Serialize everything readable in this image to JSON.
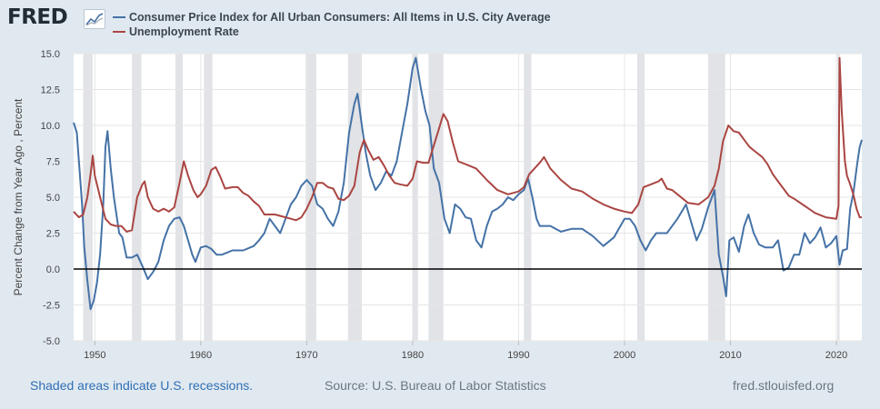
{
  "brand": {
    "logo_text": "FRED",
    "logo_icon": "trend-chart-icon"
  },
  "colors": {
    "background": "#e1e9f0",
    "plot_bg": "#ffffff",
    "recession": "#e1e3e6",
    "series_cpi": "#4572a7",
    "series_unrate": "#aa4643",
    "zero_line": "#000000"
  },
  "footer": {
    "recession_note": "Shaded areas indicate U.S. recessions.",
    "source": "Source: U.S. Bureau of Labor Statistics",
    "site": "fred.stlouisfed.org"
  },
  "chart_data": {
    "type": "line",
    "title": "",
    "ylabel": "Percent Change from Year Ago , Percent",
    "xlabel": "",
    "xlim": [
      1948.0,
      2022.4
    ],
    "ylim": [
      -5.0,
      15.0
    ],
    "x_ticks": [
      1950,
      1960,
      1970,
      1980,
      1990,
      2000,
      2010,
      2020
    ],
    "y_ticks": [
      "-5.0",
      "-2.5",
      "0.0",
      "2.5",
      "5.0",
      "7.5",
      "10.0",
      "12.5",
      "15.0"
    ],
    "grid": "vertical and horizontal",
    "legend_position": "top-left",
    "recessions": [
      [
        1948.9,
        1949.8
      ],
      [
        1953.5,
        1954.4
      ],
      [
        1957.6,
        1958.3
      ],
      [
        1960.3,
        1961.1
      ],
      [
        1969.9,
        1970.9
      ],
      [
        1973.9,
        1975.2
      ],
      [
        1980.0,
        1980.5
      ],
      [
        1981.5,
        1982.9
      ],
      [
        1990.5,
        1991.2
      ],
      [
        2001.2,
        2001.9
      ],
      [
        2007.9,
        2009.5
      ],
      [
        2020.1,
        2020.3
      ]
    ],
    "series": [
      {
        "name": "Consumer Price Index for All Urban Consumers: All Items in U.S. City Average",
        "color": "#4572a7",
        "points": [
          [
            1948.0,
            10.2
          ],
          [
            1948.3,
            9.5
          ],
          [
            1948.5,
            7.5
          ],
          [
            1948.8,
            4.5
          ],
          [
            1949.0,
            1.5
          ],
          [
            1949.3,
            -0.8
          ],
          [
            1949.6,
            -2.8
          ],
          [
            1949.9,
            -2.2
          ],
          [
            1950.2,
            -1.0
          ],
          [
            1950.5,
            1.0
          ],
          [
            1950.8,
            4.5
          ],
          [
            1951.0,
            8.5
          ],
          [
            1951.2,
            9.6
          ],
          [
            1951.5,
            7.0
          ],
          [
            1951.8,
            5.0
          ],
          [
            1952.0,
            4.0
          ],
          [
            1952.3,
            2.5
          ],
          [
            1952.6,
            2.2
          ],
          [
            1953.0,
            0.8
          ],
          [
            1953.5,
            0.8
          ],
          [
            1954.0,
            1.0
          ],
          [
            1954.5,
            0.2
          ],
          [
            1955.0,
            -0.7
          ],
          [
            1955.5,
            -0.2
          ],
          [
            1956.0,
            0.5
          ],
          [
            1956.5,
            2.0
          ],
          [
            1957.0,
            3.0
          ],
          [
            1957.5,
            3.5
          ],
          [
            1958.0,
            3.6
          ],
          [
            1958.4,
            3.0
          ],
          [
            1958.8,
            2.0
          ],
          [
            1959.2,
            1.0
          ],
          [
            1959.5,
            0.5
          ],
          [
            1960.0,
            1.5
          ],
          [
            1960.5,
            1.6
          ],
          [
            1961.0,
            1.4
          ],
          [
            1961.5,
            1.0
          ],
          [
            1962.0,
            1.0
          ],
          [
            1963.0,
            1.3
          ],
          [
            1964.0,
            1.3
          ],
          [
            1965.0,
            1.6
          ],
          [
            1965.5,
            2.0
          ],
          [
            1966.0,
            2.5
          ],
          [
            1966.5,
            3.5
          ],
          [
            1967.0,
            3.0
          ],
          [
            1967.5,
            2.5
          ],
          [
            1968.0,
            3.5
          ],
          [
            1968.5,
            4.5
          ],
          [
            1969.0,
            5.0
          ],
          [
            1969.5,
            5.8
          ],
          [
            1970.0,
            6.2
          ],
          [
            1970.5,
            5.8
          ],
          [
            1971.0,
            4.5
          ],
          [
            1971.5,
            4.2
          ],
          [
            1972.0,
            3.5
          ],
          [
            1972.5,
            3.0
          ],
          [
            1973.0,
            4.0
          ],
          [
            1973.5,
            6.0
          ],
          [
            1974.0,
            9.5
          ],
          [
            1974.5,
            11.5
          ],
          [
            1974.8,
            12.2
          ],
          [
            1975.2,
            10.0
          ],
          [
            1975.6,
            8.0
          ],
          [
            1976.0,
            6.5
          ],
          [
            1976.5,
            5.5
          ],
          [
            1977.0,
            6.0
          ],
          [
            1977.5,
            6.8
          ],
          [
            1978.0,
            6.5
          ],
          [
            1978.5,
            7.5
          ],
          [
            1979.0,
            9.5
          ],
          [
            1979.5,
            11.5
          ],
          [
            1980.0,
            14.0
          ],
          [
            1980.3,
            14.7
          ],
          [
            1980.8,
            12.5
          ],
          [
            1981.2,
            11.0
          ],
          [
            1981.6,
            10.0
          ],
          [
            1982.0,
            7.0
          ],
          [
            1982.5,
            6.0
          ],
          [
            1983.0,
            3.5
          ],
          [
            1983.5,
            2.5
          ],
          [
            1984.0,
            4.5
          ],
          [
            1984.5,
            4.2
          ],
          [
            1985.0,
            3.6
          ],
          [
            1985.5,
            3.5
          ],
          [
            1986.0,
            2.0
          ],
          [
            1986.5,
            1.5
          ],
          [
            1987.0,
            3.0
          ],
          [
            1987.5,
            4.0
          ],
          [
            1988.0,
            4.2
          ],
          [
            1988.5,
            4.5
          ],
          [
            1989.0,
            5.0
          ],
          [
            1989.5,
            4.8
          ],
          [
            1990.0,
            5.2
          ],
          [
            1990.5,
            5.5
          ],
          [
            1990.9,
            6.3
          ],
          [
            1991.3,
            5.0
          ],
          [
            1991.7,
            3.5
          ],
          [
            1992.0,
            3.0
          ],
          [
            1993.0,
            3.0
          ],
          [
            1994.0,
            2.6
          ],
          [
            1995.0,
            2.8
          ],
          [
            1996.0,
            2.8
          ],
          [
            1997.0,
            2.3
          ],
          [
            1998.0,
            1.6
          ],
          [
            1999.0,
            2.2
          ],
          [
            2000.0,
            3.5
          ],
          [
            2000.5,
            3.5
          ],
          [
            2001.0,
            3.0
          ],
          [
            2001.5,
            2.0
          ],
          [
            2002.0,
            1.3
          ],
          [
            2002.5,
            2.0
          ],
          [
            2003.0,
            2.5
          ],
          [
            2004.0,
            2.5
          ],
          [
            2005.0,
            3.5
          ],
          [
            2005.8,
            4.5
          ],
          [
            2006.2,
            3.5
          ],
          [
            2006.8,
            2.0
          ],
          [
            2007.3,
            2.8
          ],
          [
            2007.9,
            4.3
          ],
          [
            2008.5,
            5.5
          ],
          [
            2008.9,
            1.0
          ],
          [
            2009.3,
            -0.5
          ],
          [
            2009.6,
            -1.9
          ],
          [
            2009.9,
            2.0
          ],
          [
            2010.3,
            2.2
          ],
          [
            2010.8,
            1.2
          ],
          [
            2011.3,
            3.0
          ],
          [
            2011.7,
            3.8
          ],
          [
            2012.2,
            2.5
          ],
          [
            2012.7,
            1.7
          ],
          [
            2013.3,
            1.5
          ],
          [
            2014.0,
            1.5
          ],
          [
            2014.5,
            2.0
          ],
          [
            2015.0,
            -0.1
          ],
          [
            2015.5,
            0.1
          ],
          [
            2016.0,
            1.0
          ],
          [
            2016.5,
            1.0
          ],
          [
            2017.0,
            2.5
          ],
          [
            2017.5,
            1.8
          ],
          [
            2018.0,
            2.2
          ],
          [
            2018.5,
            2.9
          ],
          [
            2019.0,
            1.5
          ],
          [
            2019.5,
            1.8
          ],
          [
            2020.0,
            2.3
          ],
          [
            2020.3,
            0.3
          ],
          [
            2020.6,
            1.3
          ],
          [
            2021.0,
            1.4
          ],
          [
            2021.3,
            4.2
          ],
          [
            2021.6,
            5.3
          ],
          [
            2022.0,
            7.5
          ],
          [
            2022.2,
            8.5
          ],
          [
            2022.4,
            9.0
          ]
        ]
      },
      {
        "name": "Unemployment Rate",
        "color": "#aa4643",
        "points": [
          [
            1948.0,
            4.0
          ],
          [
            1948.5,
            3.6
          ],
          [
            1948.9,
            3.8
          ],
          [
            1949.3,
            5.0
          ],
          [
            1949.6,
            6.6
          ],
          [
            1949.8,
            7.9
          ],
          [
            1950.0,
            6.5
          ],
          [
            1950.5,
            5.0
          ],
          [
            1951.0,
            3.5
          ],
          [
            1951.5,
            3.1
          ],
          [
            1952.0,
            3.0
          ],
          [
            1952.5,
            3.0
          ],
          [
            1953.0,
            2.6
          ],
          [
            1953.5,
            2.7
          ],
          [
            1954.0,
            5.0
          ],
          [
            1954.5,
            5.9
          ],
          [
            1954.7,
            6.1
          ],
          [
            1955.0,
            5.0
          ],
          [
            1955.5,
            4.2
          ],
          [
            1956.0,
            4.0
          ],
          [
            1956.5,
            4.2
          ],
          [
            1957.0,
            4.0
          ],
          [
            1957.5,
            4.3
          ],
          [
            1958.0,
            6.0
          ],
          [
            1958.4,
            7.5
          ],
          [
            1958.8,
            6.5
          ],
          [
            1959.3,
            5.5
          ],
          [
            1959.7,
            5.0
          ],
          [
            1960.0,
            5.2
          ],
          [
            1960.5,
            5.8
          ],
          [
            1961.0,
            6.9
          ],
          [
            1961.4,
            7.1
          ],
          [
            1961.8,
            6.5
          ],
          [
            1962.3,
            5.6
          ],
          [
            1963.0,
            5.7
          ],
          [
            1963.5,
            5.7
          ],
          [
            1964.0,
            5.3
          ],
          [
            1964.5,
            5.1
          ],
          [
            1965.0,
            4.7
          ],
          [
            1965.5,
            4.4
          ],
          [
            1966.0,
            3.8
          ],
          [
            1967.0,
            3.8
          ],
          [
            1968.0,
            3.6
          ],
          [
            1968.5,
            3.5
          ],
          [
            1969.0,
            3.4
          ],
          [
            1969.5,
            3.6
          ],
          [
            1970.0,
            4.2
          ],
          [
            1970.5,
            5.0
          ],
          [
            1971.0,
            6.0
          ],
          [
            1971.5,
            6.0
          ],
          [
            1972.0,
            5.7
          ],
          [
            1972.5,
            5.6
          ],
          [
            1973.0,
            4.9
          ],
          [
            1973.5,
            4.8
          ],
          [
            1974.0,
            5.1
          ],
          [
            1974.5,
            5.8
          ],
          [
            1975.0,
            8.1
          ],
          [
            1975.4,
            9.0
          ],
          [
            1975.8,
            8.3
          ],
          [
            1976.3,
            7.6
          ],
          [
            1976.8,
            7.8
          ],
          [
            1977.3,
            7.2
          ],
          [
            1977.8,
            6.5
          ],
          [
            1978.3,
            6.0
          ],
          [
            1978.8,
            5.9
          ],
          [
            1979.5,
            5.8
          ],
          [
            1980.0,
            6.3
          ],
          [
            1980.4,
            7.5
          ],
          [
            1981.0,
            7.4
          ],
          [
            1981.5,
            7.4
          ],
          [
            1982.0,
            8.6
          ],
          [
            1982.5,
            9.8
          ],
          [
            1982.9,
            10.8
          ],
          [
            1983.3,
            10.3
          ],
          [
            1983.8,
            8.8
          ],
          [
            1984.3,
            7.5
          ],
          [
            1985.0,
            7.3
          ],
          [
            1986.0,
            7.0
          ],
          [
            1987.0,
            6.2
          ],
          [
            1988.0,
            5.5
          ],
          [
            1989.0,
            5.2
          ],
          [
            1990.0,
            5.4
          ],
          [
            1990.5,
            5.7
          ],
          [
            1991.0,
            6.6
          ],
          [
            1991.5,
            7.0
          ],
          [
            1992.0,
            7.4
          ],
          [
            1992.4,
            7.8
          ],
          [
            1993.0,
            7.0
          ],
          [
            1994.0,
            6.2
          ],
          [
            1995.0,
            5.6
          ],
          [
            1996.0,
            5.4
          ],
          [
            1997.0,
            4.9
          ],
          [
            1998.0,
            4.5
          ],
          [
            1999.0,
            4.2
          ],
          [
            2000.0,
            4.0
          ],
          [
            2000.7,
            3.9
          ],
          [
            2001.3,
            4.5
          ],
          [
            2001.8,
            5.7
          ],
          [
            2002.5,
            5.9
          ],
          [
            2003.2,
            6.1
          ],
          [
            2003.5,
            6.3
          ],
          [
            2004.0,
            5.6
          ],
          [
            2004.5,
            5.5
          ],
          [
            2005.0,
            5.2
          ],
          [
            2006.0,
            4.6
          ],
          [
            2007.0,
            4.5
          ],
          [
            2007.9,
            5.0
          ],
          [
            2008.5,
            5.8
          ],
          [
            2008.9,
            7.0
          ],
          [
            2009.3,
            8.9
          ],
          [
            2009.8,
            10.0
          ],
          [
            2010.3,
            9.6
          ],
          [
            2010.8,
            9.5
          ],
          [
            2011.3,
            9.0
          ],
          [
            2011.8,
            8.5
          ],
          [
            2012.3,
            8.2
          ],
          [
            2013.0,
            7.8
          ],
          [
            2013.5,
            7.3
          ],
          [
            2014.0,
            6.6
          ],
          [
            2014.5,
            6.1
          ],
          [
            2015.0,
            5.6
          ],
          [
            2015.5,
            5.1
          ],
          [
            2016.0,
            4.9
          ],
          [
            2017.0,
            4.4
          ],
          [
            2018.0,
            3.9
          ],
          [
            2019.0,
            3.6
          ],
          [
            2020.0,
            3.5
          ],
          [
            2020.2,
            4.4
          ],
          [
            2020.3,
            14.7
          ],
          [
            2020.5,
            11.0
          ],
          [
            2020.8,
            7.5
          ],
          [
            2021.0,
            6.5
          ],
          [
            2021.3,
            5.9
          ],
          [
            2021.6,
            5.2
          ],
          [
            2021.9,
            4.2
          ],
          [
            2022.2,
            3.6
          ],
          [
            2022.4,
            3.6
          ]
        ]
      }
    ]
  }
}
